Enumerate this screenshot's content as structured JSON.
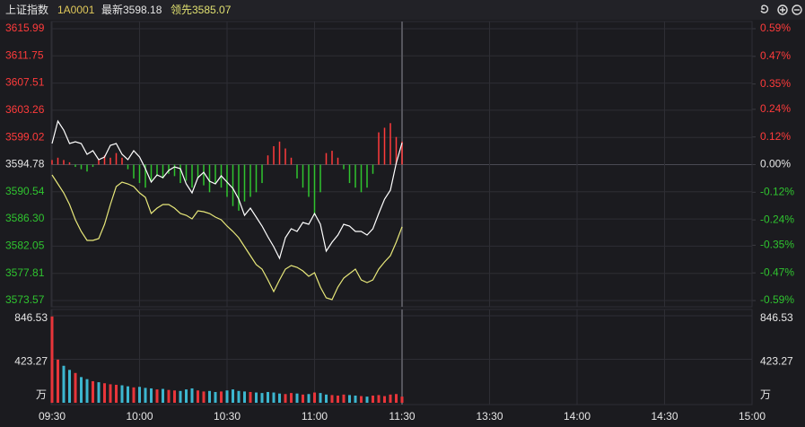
{
  "header": {
    "name": "上证指数",
    "code": "1A0001",
    "latest": "最新3598.18",
    "lead": "领先3585.07"
  },
  "chart_data": {
    "type": "line",
    "x": [
      "09:30",
      "09:32",
      "09:34",
      "09:36",
      "09:38",
      "09:40",
      "09:42",
      "09:44",
      "09:46",
      "09:48",
      "09:50",
      "09:52",
      "09:54",
      "09:56",
      "09:58",
      "10:00",
      "10:02",
      "10:04",
      "10:06",
      "10:08",
      "10:10",
      "10:12",
      "10:14",
      "10:16",
      "10:18",
      "10:20",
      "10:22",
      "10:24",
      "10:26",
      "10:28",
      "10:30",
      "10:32",
      "10:34",
      "10:36",
      "10:38",
      "10:40",
      "10:42",
      "10:44",
      "10:46",
      "10:48",
      "10:50",
      "10:52",
      "10:54",
      "10:56",
      "10:58",
      "11:00",
      "11:02",
      "11:04",
      "11:06",
      "11:08",
      "11:10",
      "11:12",
      "11:14",
      "11:16",
      "11:18",
      "11:20",
      "11:22",
      "11:24",
      "11:26",
      "11:28",
      "11:30"
    ],
    "xticks": [
      "09:30",
      "10:00",
      "10:30",
      "11:00",
      "11:30",
      "13:30",
      "14:00",
      "14:30",
      "15:00"
    ],
    "ylim": [
      3573.57,
      3615.99
    ],
    "yticks": [
      3615.99,
      3611.75,
      3607.51,
      3603.26,
      3599.02,
      3594.78,
      3590.54,
      {
        "value": 3586.3,
        "label": "3586.30"
      },
      3582.05,
      3577.81,
      3573.57
    ],
    "y2lim": [
      -0.59,
      0.59
    ],
    "y2ticks": [
      {
        "value": 0.59,
        "label": "0.59%"
      },
      {
        "value": 0.47,
        "label": "0.47%"
      },
      {
        "value": 0.35,
        "label": "0.35%"
      },
      {
        "value": 0.24,
        "label": "0.24%"
      },
      {
        "value": 0.12,
        "label": "0.12%"
      },
      {
        "value": 0,
        "label": "0.00%"
      },
      {
        "value": -0.12,
        "label": "-0.12%"
      },
      {
        "value": -0.24,
        "label": "-0.24%"
      },
      {
        "value": -0.35,
        "label": "-0.35%"
      },
      {
        "value": -0.47,
        "label": "-0.47%"
      },
      {
        "value": -0.59,
        "label": "-0.59%"
      }
    ],
    "up_color": "#ff3b3b",
    "down_color": "#2fc42f",
    "grid": true,
    "series": [
      {
        "color": "#ffffff",
        "values": [
          3598.07,
          3601.57,
          3600.17,
          3598.07,
          3598.35,
          3598.07,
          3596.39,
          3596.95,
          3595.55,
          3595.97,
          3597.79,
          3598.07,
          3596.39,
          3595.55,
          3596.95,
          3595.97,
          3594.15,
          3592.05,
          3593.17,
          3592.75,
          3593.87,
          3594.43,
          3594.15,
          3591.77,
          3590.37,
          3592.75,
          3593.59,
          3592.19,
          3591.77,
          3593.03,
          3592.05,
          3591.07,
          3589.39,
          3586.87,
          3587.99,
          3586.59,
          3585.19,
          3583.51,
          3581.97,
          3580.15,
          3583.37,
          3584.77,
          3584.35,
          3585.75,
          3585.47,
          3587.15,
          3585.47,
          3581.27,
          3582.67,
          3583.79,
          3585.47,
          3585.19,
          3584.35,
          3584.35,
          3583.79,
          3584.77,
          3587.15,
          3589.39,
          3590.79,
          3594.99,
          3598.18
        ]
      },
      {
        "color": "#e8e87a",
        "values": [
          3593.17,
          3591.77,
          3590.37,
          3588.55,
          3586.17,
          3584.35,
          3582.95,
          3582.95,
          3583.23,
          3585.47,
          3588.55,
          3591.35,
          3592.05,
          3591.77,
          3591.35,
          3590.37,
          3589.67,
          3587.15,
          3587.99,
          3588.55,
          3588.55,
          3587.99,
          3587.15,
          3586.87,
          3586.31,
          3587.57,
          3587.43,
          3587.15,
          3586.59,
          3586.17,
          3585.19,
          3584.35,
          3583.37,
          3581.97,
          3580.57,
          3579.17,
          3578.47,
          3576.79,
          3574.97,
          3576.79,
          3578.47,
          3579.03,
          3578.75,
          3578.19,
          3577.35,
          3577.91,
          3575.67,
          3573.99,
          3573.71,
          3575.67,
          3577.07,
          3577.77,
          3578.47,
          3576.79,
          3576.37,
          3576.79,
          3578.47,
          3579.59,
          3580.57,
          3582.67,
          3585.07
        ]
      },
      {
        "axis": "y2",
        "values": [
          0.02,
          0.03,
          0.02,
          0.01,
          -0.01,
          -0.02,
          -0.03,
          -0.01,
          0.02,
          0.04,
          0.03,
          0.05,
          0.03,
          -0.02,
          -0.06,
          -0.08,
          -0.1,
          -0.07,
          -0.05,
          -0.06,
          -0.04,
          -0.05,
          -0.08,
          -0.07,
          -0.1,
          -0.06,
          -0.09,
          -0.12,
          -0.08,
          -0.1,
          -0.14,
          -0.18,
          -0.2,
          -0.16,
          -0.14,
          -0.12,
          -0.08,
          0.04,
          0.08,
          0.1,
          0.07,
          0.03,
          -0.06,
          -0.1,
          -0.14,
          -0.22,
          -0.12,
          0.05,
          0.06,
          0.03,
          -0.02,
          -0.08,
          -0.1,
          -0.12,
          -0.1,
          -0.04,
          0.14,
          0.16,
          0.18,
          0.12,
          0.1
        ]
      }
    ],
    "volume": {
      "ylim": [
        0,
        846.53
      ],
      "yticks": [
        423.27,
        846.53
      ],
      "unit": "万",
      "up_color": "#e8353a",
      "down_color": "#3cb6cf",
      "values": [
        840,
        420,
        360,
        320,
        290,
        250,
        230,
        210,
        200,
        190,
        180,
        175,
        170,
        160,
        150,
        155,
        145,
        140,
        130,
        135,
        125,
        120,
        115,
        130,
        140,
        120,
        110,
        115,
        105,
        110,
        120,
        130,
        115,
        110,
        105,
        100,
        95,
        105,
        100,
        90,
        85,
        95,
        90,
        80,
        85,
        100,
        95,
        80,
        75,
        70,
        80,
        75,
        70,
        65,
        60,
        70,
        75,
        65,
        80,
        85,
        60
      ]
    }
  }
}
